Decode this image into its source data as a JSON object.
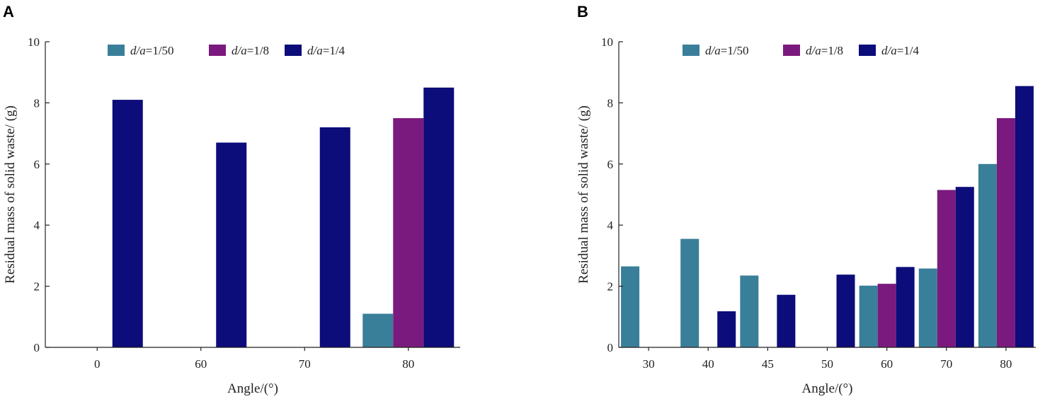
{
  "colors": {
    "teal": "#3a7f99",
    "purple": "#7b1a7e",
    "navy": "#0c0c7a"
  },
  "chart_data": [
    {
      "panel": "A",
      "type": "bar",
      "categories": [
        "0",
        "60",
        "70",
        "80"
      ],
      "series": [
        {
          "name": "d/a=1/50",
          "legend_var": "d/a",
          "legend_val": "=1/50",
          "color": "#3a7f99",
          "values": [
            0,
            0,
            0,
            1.1
          ]
        },
        {
          "name": "d/a=1/8",
          "legend_var": "d/a",
          "legend_val": "=1/8",
          "color": "#7b1a7e",
          "values": [
            0,
            0,
            0,
            7.5
          ]
        },
        {
          "name": "d/a=1/4",
          "legend_var": "d/a",
          "legend_val": "=1/4",
          "color": "#0c0c7a",
          "values": [
            8.1,
            6.7,
            7.2,
            8.5
          ]
        }
      ],
      "xlabel": "Angle/(°)",
      "ylabel": "Residual mass of solid waste/ (g)",
      "ylim": [
        0,
        10
      ],
      "yticks": [
        "0",
        "2",
        "4",
        "6",
        "8",
        "10"
      ],
      "legend": "top",
      "grid": false
    },
    {
      "panel": "B",
      "type": "bar",
      "categories": [
        "30",
        "40",
        "45",
        "50",
        "60",
        "70",
        "80"
      ],
      "series": [
        {
          "name": "d/a=1/50",
          "legend_var": "d/a",
          "legend_val": "=1/50",
          "color": "#3a7f99",
          "values": [
            2.65,
            3.55,
            2.35,
            0,
            2.02,
            2.58,
            6.0
          ]
        },
        {
          "name": "d/a=1/8",
          "legend_var": "d/a",
          "legend_val": "=1/8",
          "color": "#7b1a7e",
          "values": [
            0,
            0,
            0,
            0,
            2.08,
            5.15,
            7.5
          ]
        },
        {
          "name": "d/a=1/4",
          "legend_var": "d/a",
          "legend_val": "=1/4",
          "color": "#0c0c7a",
          "values": [
            0,
            1.18,
            1.72,
            2.38,
            2.63,
            5.25,
            8.55
          ]
        }
      ],
      "xlabel": "Angle/(°)",
      "ylabel": "Residual mass of solid waste/ (g)",
      "ylim": [
        0,
        10
      ],
      "yticks": [
        "0",
        "2",
        "4",
        "6",
        "8",
        "10"
      ],
      "legend": "top",
      "grid": false
    }
  ]
}
